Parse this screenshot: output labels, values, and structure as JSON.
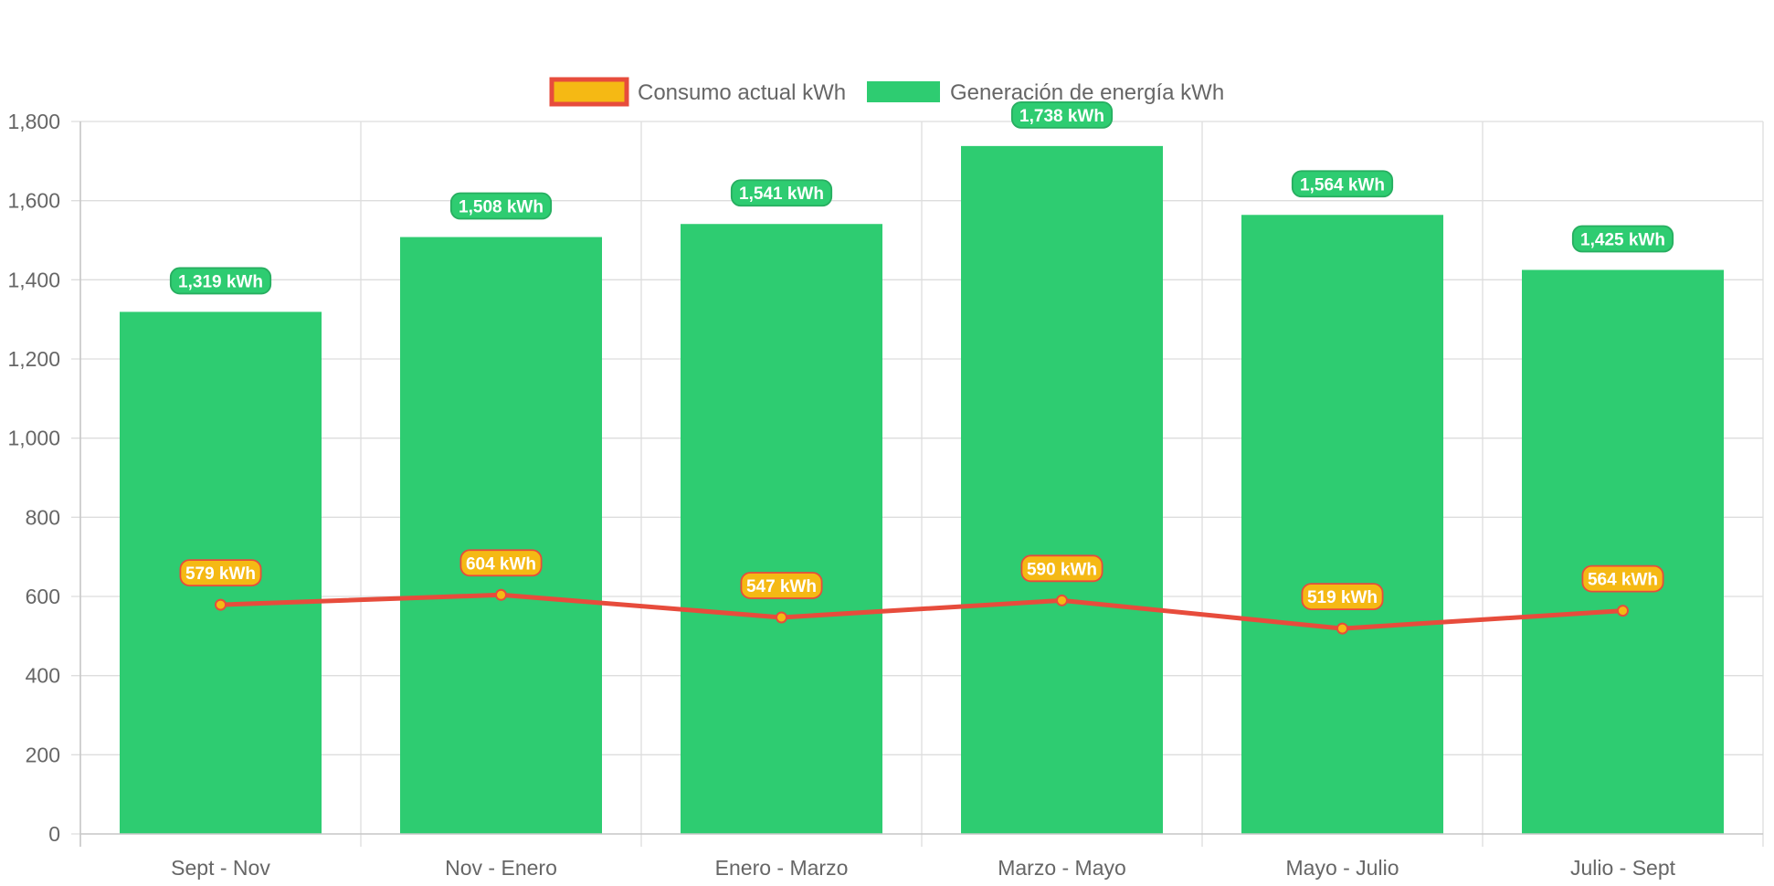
{
  "chart_data": {
    "type": "bar",
    "categories": [
      "Sept - Nov",
      "Nov - Enero",
      "Enero - Marzo",
      "Marzo - Mayo",
      "Mayo - Julio",
      "Julio - Sept"
    ],
    "series": [
      {
        "name": "Consumo actual kWh",
        "type": "line",
        "values": [
          579,
          604,
          547,
          590,
          519,
          564
        ],
        "labels": [
          "579 kWh",
          "604 kWh",
          "547 kWh",
          "590 kWh",
          "519 kWh",
          "564 kWh"
        ],
        "color": "#f5b914",
        "border_color": "#e74c3c"
      },
      {
        "name": "Generación de energía kWh",
        "type": "bar",
        "values": [
          1319,
          1508,
          1541,
          1738,
          1564,
          1425
        ],
        "labels": [
          "1,319 kWh",
          "1,508 kWh",
          "1,541 kWh",
          "1,738 kWh",
          "1,564 kWh",
          "1,425 kWh"
        ],
        "color": "#2ecc71",
        "border_color": "#27ae60"
      }
    ],
    "ylim": [
      0,
      1800
    ],
    "yticks": [
      0,
      200,
      400,
      600,
      800,
      1000,
      1200,
      1400,
      1600,
      1800
    ],
    "ytick_labels": [
      "0",
      "200",
      "400",
      "600",
      "800",
      "1,000",
      "1,200",
      "1,400",
      "1,600",
      "1,800"
    ],
    "grid": true,
    "legend_position": "top-center",
    "title": "",
    "xlabel": "",
    "ylabel": ""
  }
}
